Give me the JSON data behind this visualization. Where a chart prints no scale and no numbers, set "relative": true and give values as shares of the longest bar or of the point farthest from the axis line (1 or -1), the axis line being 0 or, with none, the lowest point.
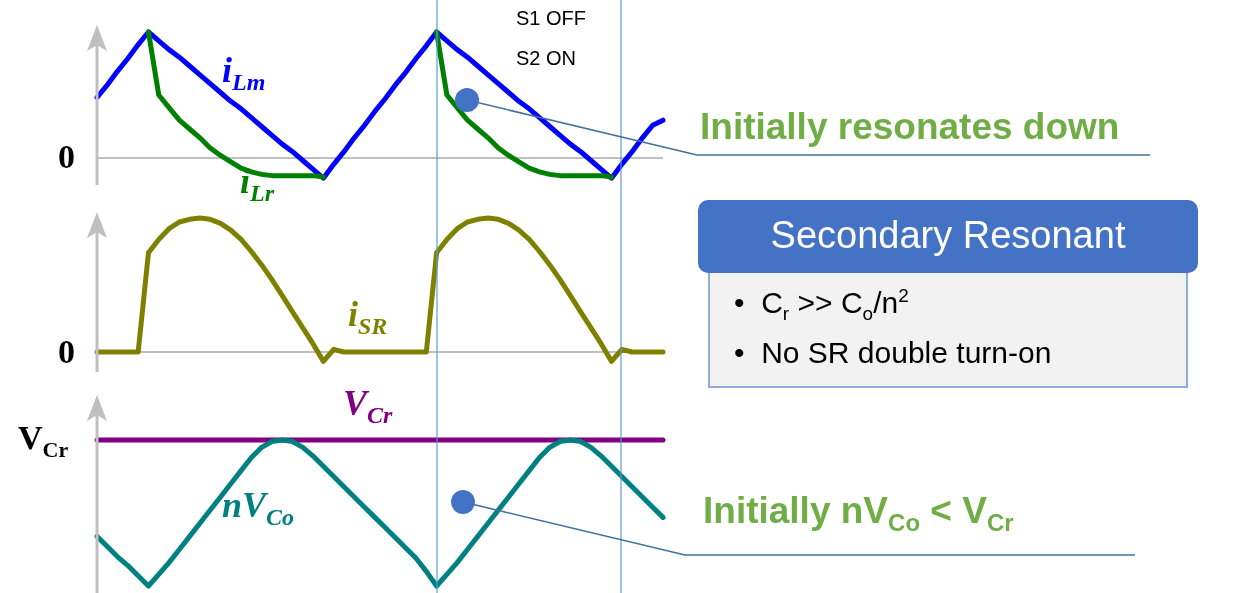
{
  "chart_data": [
    {
      "type": "line",
      "relative": true,
      "categories": [
        null,
        null,
        null,
        null,
        null,
        null,
        null,
        null,
        null,
        null,
        null,
        null,
        null,
        null,
        null,
        null,
        null,
        null,
        null,
        null,
        null,
        null,
        null,
        null,
        null,
        null,
        null,
        null,
        null,
        null,
        null,
        null,
        null,
        null,
        null,
        null,
        null,
        null,
        null,
        null,
        null,
        null,
        null,
        null,
        null,
        null,
        null,
        null,
        null,
        null,
        null,
        null,
        null,
        null,
        null,
        null
      ],
      "series": [
        {
          "name": "i$_{Lm}$",
          "color": "#0000ff",
          "values": [
            0.48,
            0.58,
            0.69,
            0.79,
            0.9,
            1,
            0.93,
            0.86,
            0.8,
            0.73,
            0.66,
            0.59,
            0.52,
            0.45,
            0.39,
            0.32,
            0.25,
            0.18,
            0.11,
            0.05,
            -0.02,
            -0.09,
            -0.16,
            -0.05,
            0.05,
            0.16,
            0.26,
            0.37,
            0.47,
            0.58,
            0.68,
            0.79,
            0.89,
            1,
            0.93,
            0.86,
            0.8,
            0.73,
            0.66,
            0.59,
            0.52,
            0.45,
            0.39,
            0.32,
            0.25,
            0.18,
            0.11,
            0.05,
            -0.02,
            -0.09,
            -0.16,
            -0.05,
            0.05,
            0.16,
            0.26,
            0.3
          ]
        },
        {
          "name": "i$_{Lr}$",
          "color": "#008000",
          "values": [
            null,
            null,
            null,
            null,
            null,
            1,
            0.5,
            0.4,
            0.3,
            0.23,
            0.16,
            0.08,
            0.02,
            -0.03,
            -0.08,
            -0.11,
            -0.13,
            -0.14,
            -0.14,
            -0.14,
            -0.14,
            -0.14,
            -0.15,
            null,
            null,
            null,
            null,
            null,
            null,
            null,
            null,
            null,
            null,
            1,
            0.5,
            0.4,
            0.3,
            0.23,
            0.16,
            0.08,
            0.02,
            -0.03,
            -0.08,
            -0.11,
            -0.13,
            -0.14,
            -0.14,
            -0.14,
            -0.14,
            -0.14,
            -0.15,
            null,
            null,
            null,
            null,
            null
          ]
        }
      ],
      "annotations": [
        "0",
        "S1 OFF",
        "S2 ON",
        "Initially resonates down"
      ],
      "ref_lines": [
        {
          "axis": "y",
          "value": 0,
          "color": "#bfbfbf"
        }
      ]
    },
    {
      "type": "line",
      "relative": true,
      "categories": [
        null,
        null,
        null,
        null,
        null,
        null,
        null,
        null,
        null,
        null,
        null,
        null,
        null,
        null,
        null,
        null,
        null,
        null,
        null,
        null,
        null,
        null,
        null,
        null,
        null,
        null,
        null,
        null,
        null,
        null,
        null,
        null,
        null,
        null,
        null,
        null,
        null,
        null,
        null,
        null,
        null,
        null,
        null,
        null,
        null,
        null,
        null,
        null,
        null,
        null,
        null,
        null,
        null,
        null,
        null,
        null
      ],
      "series": [
        {
          "name": "i$_{SR}$",
          "color": "#808000",
          "values": [
            0,
            0,
            0,
            0,
            0,
            0.74,
            0.84,
            0.92,
            0.97,
            0.99,
            1,
            0.99,
            0.96,
            0.91,
            0.84,
            0.75,
            0.65,
            0.54,
            0.42,
            0.3,
            0.18,
            0.06,
            -0.07,
            0.02,
            0,
            0,
            0,
            0,
            0,
            0,
            0,
            0,
            0,
            0.74,
            0.84,
            0.92,
            0.97,
            0.99,
            1,
            0.99,
            0.96,
            0.91,
            0.84,
            0.75,
            0.65,
            0.54,
            0.42,
            0.3,
            0.18,
            0.06,
            -0.07,
            0.02,
            0,
            0,
            0,
            0
          ]
        }
      ],
      "annotations": [
        "0"
      ],
      "ref_lines": [
        {
          "axis": "y",
          "value": 0,
          "color": "#bfbfbf"
        }
      ]
    },
    {
      "type": "line",
      "relative": true,
      "categories": [
        null,
        null,
        null,
        null,
        null,
        null,
        null,
        null,
        null,
        null,
        null,
        null,
        null,
        null,
        null,
        null,
        null,
        null,
        null,
        null,
        null,
        null,
        null,
        null,
        null,
        null,
        null,
        null,
        null,
        null,
        null,
        null,
        null,
        null,
        null,
        null,
        null,
        null,
        null,
        null,
        null,
        null,
        null,
        null,
        null,
        null,
        null,
        null,
        null,
        null,
        null,
        null,
        null,
        null,
        null,
        null
      ],
      "series": [
        {
          "name": "V$_{Cr}$",
          "color": "#800080",
          "values": [
            1,
            1,
            1,
            1,
            1,
            1,
            1,
            1,
            1,
            1,
            1,
            1,
            1,
            1,
            1,
            1,
            1,
            1,
            1,
            1,
            1,
            1,
            1,
            1,
            1,
            1,
            1,
            1,
            1,
            1,
            1,
            1,
            1,
            1,
            1,
            1,
            1,
            1,
            1,
            1,
            1,
            1,
            1,
            1,
            1,
            1,
            1,
            1,
            1,
            1,
            1,
            1,
            1,
            1,
            1,
            1
          ]
        },
        {
          "name": "nV$_{Co}$",
          "color": "#008080",
          "values": [
            0.34,
            0.27,
            0.2,
            0.14,
            0.07,
            0,
            0.08,
            0.16,
            0.25,
            0.34,
            0.43,
            0.52,
            0.61,
            0.7,
            0.79,
            0.88,
            0.95,
            0.99,
            1,
            0.99,
            0.95,
            0.89,
            0.82,
            0.75,
            0.68,
            0.61,
            0.54,
            0.47,
            0.4,
            0.33,
            0.26,
            0.19,
            0.1,
            0,
            0.08,
            0.16,
            0.25,
            0.34,
            0.43,
            0.52,
            0.61,
            0.7,
            0.79,
            0.88,
            0.95,
            0.99,
            1,
            0.99,
            0.95,
            0.89,
            0.82,
            0.75,
            0.68,
            0.61,
            0.54,
            0.47
          ]
        }
      ],
      "annotations": [
        "V$_{Cr}$",
        "Initially nV$_{Co}$ < V$_{Cr}$"
      ]
    },
    {
      "type": "other",
      "title": "Secondary Resonant",
      "annotations": [
        "•  C$_{r}$ >> C$_{o}$/n$^{2}$",
        "•  No SR double turn-on"
      ]
    }
  ]
}
